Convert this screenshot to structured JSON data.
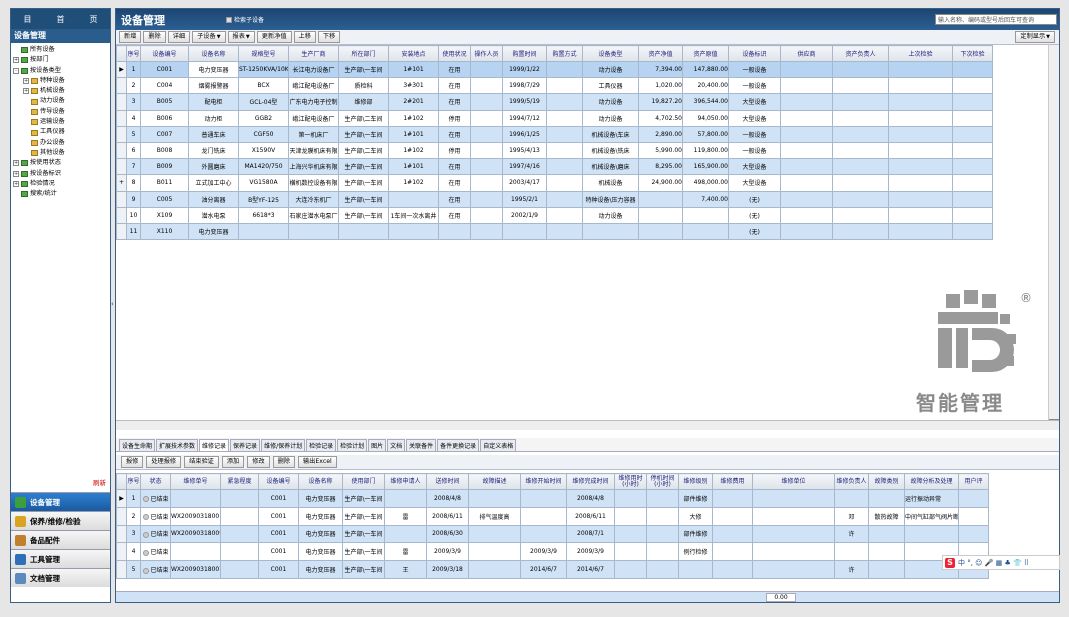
{
  "nav": {
    "home_left": "目",
    "home_mid": "首",
    "home_right": "页",
    "panel_title": "设备管理",
    "refresh": "刷新"
  },
  "tree": [
    {
      "label": "所有设备",
      "exp": "",
      "indent": 0
    },
    {
      "label": "按部门",
      "exp": "+",
      "indent": 0
    },
    {
      "label": "按设备类型",
      "exp": "-",
      "indent": 0
    },
    {
      "label": "特种设备",
      "exp": "+",
      "indent": 1
    },
    {
      "label": "机械设备",
      "exp": "+",
      "indent": 1
    },
    {
      "label": "动力设备",
      "exp": "",
      "indent": 1
    },
    {
      "label": "传导设备",
      "exp": "",
      "indent": 1
    },
    {
      "label": "运输设备",
      "exp": "",
      "indent": 1
    },
    {
      "label": "工具仪器",
      "exp": "",
      "indent": 1
    },
    {
      "label": "办公设备",
      "exp": "",
      "indent": 1
    },
    {
      "label": "其他设备",
      "exp": "",
      "indent": 1
    },
    {
      "label": "按使用状态",
      "exp": "+",
      "indent": 0
    },
    {
      "label": "按设备标识",
      "exp": "+",
      "indent": 0
    },
    {
      "label": "检验情况",
      "exp": "+",
      "indent": 0
    },
    {
      "label": "搜索/统计",
      "exp": "",
      "indent": 0
    }
  ],
  "modules": [
    {
      "label": "设备管理",
      "color": "#3ba03b",
      "active": true
    },
    {
      "label": "保养/维修/检验",
      "color": "#d9a520",
      "active": false
    },
    {
      "label": "备品配件",
      "color": "#c08030",
      "active": false
    },
    {
      "label": "工具管理",
      "color": "#2f6fb8",
      "active": false
    },
    {
      "label": "文档管理",
      "color": "#5a8ac0",
      "active": false
    }
  ],
  "main": {
    "title": "设备管理",
    "checkbox": "检索子设备",
    "search_placeholder": "输入名称、编码或型号后回车可查询",
    "custom": "定制显示"
  },
  "toolbar": [
    "新增",
    "删除",
    "详细",
    "子设备",
    "报表",
    "更新净值",
    "上移",
    "下移"
  ],
  "toolbar_dd": [
    "子设备",
    "报表"
  ],
  "grid1": {
    "headers": [
      "序号",
      "设备编号",
      "设备名称",
      "规格型号",
      "生产厂商",
      "所在部门",
      "安装地点",
      "使用状况",
      "操作人员",
      "购置时间",
      "购置方式",
      "设备类型",
      "资产净值",
      "资产原值",
      "设备标识",
      "供应商",
      "资产负责人",
      "上次检验",
      "下次检验"
    ],
    "rows": [
      [
        "1",
        "C001",
        "电力变压器",
        "ST-1250KVA/10KV",
        "长江电力设备厂",
        "生产部\\一车间",
        "1#101",
        "在用",
        "",
        "1999/1/22",
        "",
        "动力设备",
        "7,394.00",
        "147,880.00",
        "一般设备",
        "",
        "",
        "",
        ""
      ],
      [
        "2",
        "C004",
        "烟雾报警器",
        "BCX",
        "峨江配电设备厂",
        "质检科",
        "3#301",
        "在用",
        "",
        "1998/7/29",
        "",
        "工具仪器",
        "1,020.00",
        "20,400.00",
        "一般设备",
        "",
        "",
        "",
        ""
      ],
      [
        "3",
        "B005",
        "配电柜",
        "GCL-04型",
        "广东电力电子控制",
        "维修部",
        "2#201",
        "在用",
        "",
        "1999/5/19",
        "",
        "动力设备",
        "19,827.20",
        "396,544.00",
        "大型设备",
        "",
        "",
        "",
        ""
      ],
      [
        "4",
        "B006",
        "动力柜",
        "GGB2",
        "峨江配电设备厂",
        "生产部\\二车间",
        "1#102",
        "停用",
        "",
        "1994/7/12",
        "",
        "动力设备",
        "4,702.50",
        "94,050.00",
        "大型设备",
        "",
        "",
        "",
        ""
      ],
      [
        "5",
        "C007",
        "普通车床",
        "CGF50",
        "第一机床厂",
        "生产部\\一车间",
        "1#101",
        "在用",
        "",
        "1996/1/25",
        "",
        "机械设备\\车床",
        "2,890.00",
        "57,800.00",
        "一般设备",
        "",
        "",
        "",
        ""
      ],
      [
        "6",
        "B008",
        "龙门铣床",
        "X1590V",
        "天津龙膜机床有限",
        "生产部\\二车间",
        "1#102",
        "停用",
        "",
        "1995/4/13",
        "",
        "机械设备\\铣床",
        "5,990.00",
        "119,800.00",
        "一般设备",
        "",
        "",
        "",
        ""
      ],
      [
        "7",
        "B009",
        "外圆磨床",
        "MA1420/750",
        "上海兴华机床有限",
        "生产部\\一车间",
        "1#101",
        "在用",
        "",
        "1997/4/16",
        "",
        "机械设备\\磨床",
        "8,295.00",
        "165,900.00",
        "大型设备",
        "",
        "",
        "",
        ""
      ],
      [
        "8",
        "B011",
        "立式加工中心",
        "VG1580A",
        "横机数控设备有限",
        "生产部\\一车间",
        "1#102",
        "在用",
        "",
        "2003/4/17",
        "",
        "机械设备",
        "24,900.00",
        "498,000.00",
        "大型设备",
        "",
        "",
        "",
        ""
      ],
      [
        "9",
        "C005",
        "油分离器",
        "B型YF-125",
        "大连冷东机厂",
        "生产部\\一车间",
        "",
        "在用",
        "",
        "1995/2/1",
        "",
        "特种设备\\压力容器",
        "",
        "7,400.00",
        "(无)",
        "",
        "",
        "",
        ""
      ],
      [
        "10",
        "X109",
        "潜水电泵",
        "6618*3",
        "石家庄潜水电泵厂",
        "生产部\\一车间",
        "1车间一次水离井",
        "在用",
        "",
        "2002/1/9",
        "",
        "动力设备",
        "",
        "",
        "(无)",
        "",
        "",
        "",
        ""
      ],
      [
        "11",
        "X110",
        "电力变压器",
        "",
        "",
        "",
        "",
        "",
        "",
        "",
        "",
        "",
        "",
        "",
        "(无)",
        "",
        "",
        "",
        ""
      ]
    ]
  },
  "tabs": [
    "设备生命期",
    "扩展技术参数",
    "维修记录",
    "保养记录",
    "维修/保养计划",
    "检验记录",
    "检验计划",
    "图片",
    "文档",
    "关联备件",
    "备件更换记录",
    "自定义表格"
  ],
  "active_tab": "维修记录",
  "toolbar2": [
    "报修",
    "处理报修",
    "结束验证",
    "添加",
    "修改",
    "删除",
    "输出Excel"
  ],
  "grid2": {
    "headers": [
      "序号",
      "状态",
      "维修单号",
      "紧急程度",
      "设备编号",
      "设备名称",
      "使用部门",
      "维修申请人",
      "送修时间",
      "故障描述",
      "维修开始时间",
      "维修完成时间",
      "维修用时(小时)",
      "停机时间(小时)",
      "维修级别",
      "维修费用",
      "维修单位",
      "维修负责人",
      "故障类别",
      "故障分析及处理",
      "用户评"
    ],
    "rows": [
      [
        "1",
        "已结束",
        "",
        "",
        "C001",
        "电力变压器",
        "生产部\\一车间",
        "",
        "2008/4/8",
        "",
        "",
        "2008/4/8",
        "",
        "",
        "部件维修",
        "",
        "",
        "",
        "",
        "运行振动异常",
        ""
      ],
      [
        "2",
        "已结束",
        "WX20090318001",
        "",
        "C001",
        "电力变压器",
        "生产部\\一车间",
        "雷",
        "2008/6/11",
        "排气温度高",
        "",
        "2008/6/11",
        "",
        "",
        "大修",
        "",
        "",
        "邓",
        "散热故障",
        "中间气缸部气阀片断裂",
        ""
      ],
      [
        "3",
        "已结束",
        "WX20090318009",
        "",
        "C001",
        "电力变压器",
        "生产部\\一车间",
        "",
        "2008/6/30",
        "",
        "",
        "2008/7/1",
        "",
        "",
        "部件维修",
        "",
        "",
        "许",
        "",
        "",
        ""
      ],
      [
        "4",
        "已结束",
        "",
        "",
        "C001",
        "电力变压器",
        "生产部\\一车间",
        "雷",
        "2009/3/9",
        "",
        "2009/3/9",
        "2009/3/9",
        "",
        "",
        "例行检修",
        "",
        "",
        "",
        "",
        "",
        ""
      ],
      [
        "5",
        "已结束",
        "WX20090318007",
        "",
        "C001",
        "电力变压器",
        "生产部\\一车间",
        "王",
        "2009/3/18",
        "",
        "2014/6/7",
        "2014/6/7",
        "",
        "",
        "",
        "",
        "",
        "许",
        "",
        "",
        ""
      ]
    ],
    "total": "0.00"
  },
  "watermark": {
    "text": "智能管理",
    "reg": "®"
  },
  "ime": {
    "text": "中 °, ☺ 🎤 ▦ ♣ 👕 ⠿"
  }
}
